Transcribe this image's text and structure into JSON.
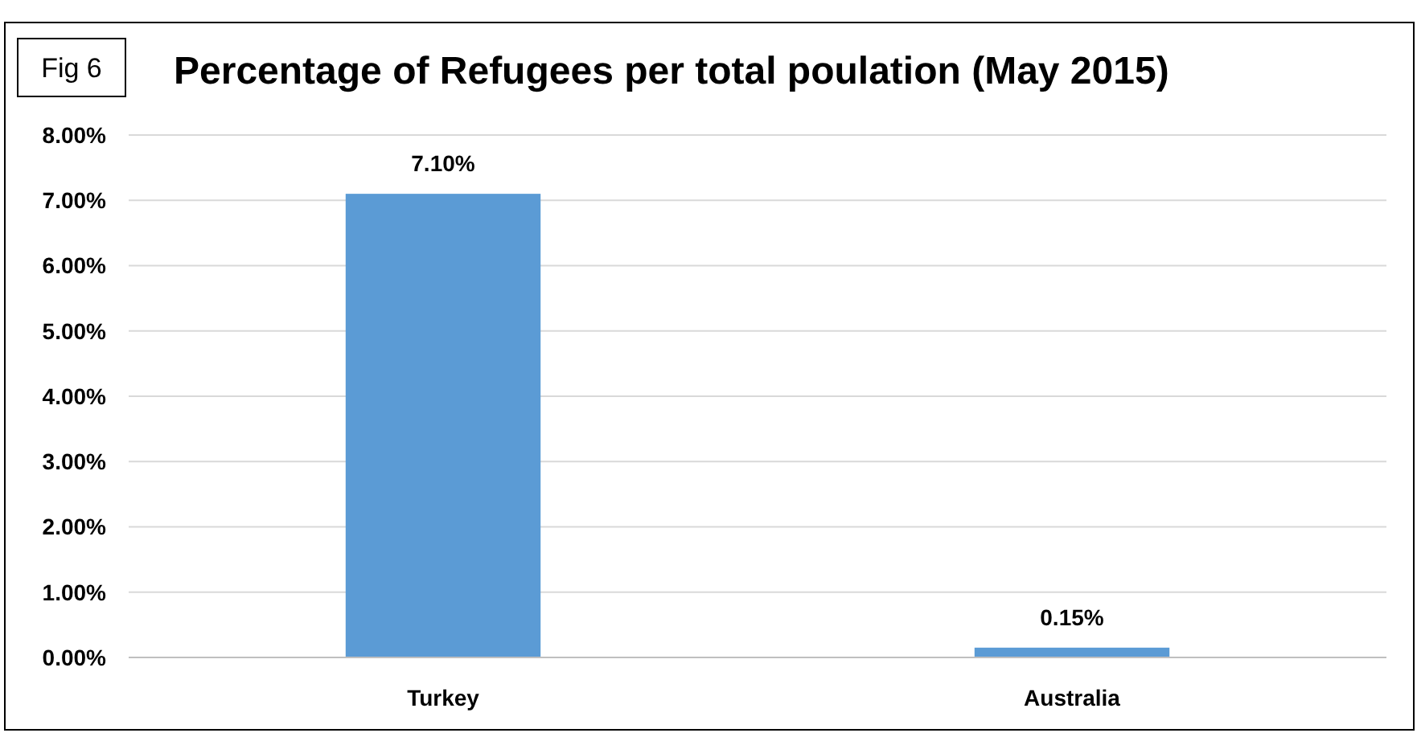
{
  "chart_data": {
    "type": "bar",
    "title": "Percentage of Refugees per total poulation (May 2015)",
    "annotations": [
      "Fig 6"
    ],
    "categories": [
      "Turkey",
      "Australia"
    ],
    "values": [
      7.1,
      0.15
    ],
    "color": "#5b9bd5",
    "value_labels": [
      "7.10%",
      "0.15%"
    ],
    "ylim": [
      0,
      8
    ],
    "yticks": [
      {
        "value": 0,
        "label": "0.00%"
      },
      {
        "value": 1,
        "label": "1.00%"
      },
      {
        "value": 2,
        "label": "2.00%"
      },
      {
        "value": 3,
        "label": "3.00%"
      },
      {
        "value": 4,
        "label": "4.00%"
      },
      {
        "value": 5,
        "label": "5.00%"
      },
      {
        "value": 6,
        "label": "6.00%"
      },
      {
        "value": 7,
        "label": "7.00%"
      },
      {
        "value": 8,
        "label": "8.00%"
      }
    ],
    "grid": "y"
  }
}
